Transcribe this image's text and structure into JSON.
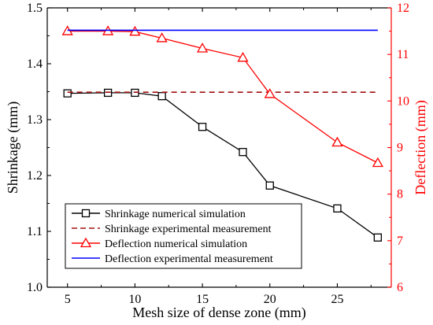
{
  "chart_data": {
    "type": "line",
    "xlabel": "Mesh size of dense zone (mm)",
    "ylabel_left": "Shrinkage (mm)",
    "ylabel_right": "Deflection (mm)",
    "xlim": [
      3.5,
      29
    ],
    "xticks": [
      5,
      10,
      15,
      20,
      25
    ],
    "ylim_left": [
      1.0,
      1.5
    ],
    "yticks_left": [
      1.0,
      1.1,
      1.2,
      1.3,
      1.4,
      1.5
    ],
    "ylim_right": [
      6,
      12
    ],
    "yticks_right": [
      6,
      7,
      8,
      9,
      10,
      11,
      12
    ],
    "left_axis_color": "#000000",
    "right_axis_color": "#ff0000",
    "legend_position": "bottom-left",
    "grid": false,
    "series": [
      {
        "name": "Shrinkage numerical simulation",
        "axis": "left",
        "style": "solid",
        "marker": "square",
        "color": "#000000",
        "x": [
          5,
          8,
          10,
          12,
          15,
          18,
          20,
          25,
          28
        ],
        "values": [
          1.347,
          1.348,
          1.348,
          1.342,
          1.287,
          1.242,
          1.182,
          1.141,
          1.089
        ]
      },
      {
        "name": "Shrinkage experimental measurement",
        "axis": "left",
        "style": "dashed",
        "marker": "none",
        "color": "#a01010",
        "x": [
          5,
          28
        ],
        "values": [
          1.349,
          1.349
        ]
      },
      {
        "name": "Deflection numerical simulation",
        "axis": "right",
        "style": "solid",
        "marker": "triangle",
        "color": "#ff0000",
        "x": [
          5,
          8,
          10,
          12,
          15,
          18,
          20,
          25,
          28
        ],
        "values": [
          11.5,
          11.5,
          11.49,
          11.35,
          11.13,
          10.93,
          10.15,
          9.11,
          8.67
        ]
      },
      {
        "name": "Deflection experimental measurement",
        "axis": "right",
        "style": "solid",
        "marker": "none",
        "color": "#0000ff",
        "x": [
          5,
          28
        ],
        "values": [
          11.52,
          11.52
        ]
      }
    ]
  }
}
